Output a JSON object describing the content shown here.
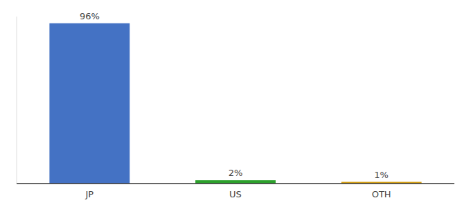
{
  "chart_data": {
    "type": "bar",
    "categories": [
      "JP",
      "US",
      "OTH"
    ],
    "values": [
      96,
      2,
      1
    ],
    "value_labels": [
      "96%",
      "2%",
      "1%"
    ],
    "data_labels": true,
    "colors": [
      "#4472c4",
      "#2ca02c",
      "#d4a017"
    ],
    "ylim": [
      0,
      100
    ],
    "grid": false,
    "tick_labels": "x"
  }
}
